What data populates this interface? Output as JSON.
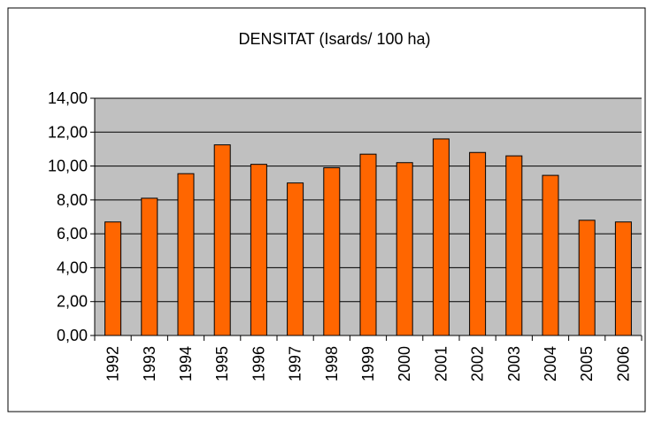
{
  "chart_data": {
    "type": "bar",
    "title": "DENSITAT (Isards/ 100 ha)",
    "categories": [
      "1992",
      "1993",
      "1994",
      "1995",
      "1996",
      "1997",
      "1998",
      "1999",
      "2000",
      "2001",
      "2002",
      "2003",
      "2004",
      "2005",
      "2006"
    ],
    "values": [
      6.7,
      8.1,
      9.55,
      11.25,
      10.1,
      9.0,
      9.9,
      10.7,
      10.2,
      11.6,
      10.8,
      10.6,
      9.45,
      6.8,
      6.7
    ],
    "color": "#ff6600",
    "ylim": [
      0,
      14
    ],
    "yticks": [
      {
        "value": 0,
        "label": "0,00"
      },
      {
        "value": 2,
        "label": "2,00"
      },
      {
        "value": 4,
        "label": "4,00"
      },
      {
        "value": 6,
        "label": "6,00"
      },
      {
        "value": 8,
        "label": "8,00"
      },
      {
        "value": 10,
        "label": "10,00"
      },
      {
        "value": 12,
        "label": "12,00"
      },
      {
        "value": 14,
        "label": "14,00"
      }
    ],
    "grid": true
  }
}
